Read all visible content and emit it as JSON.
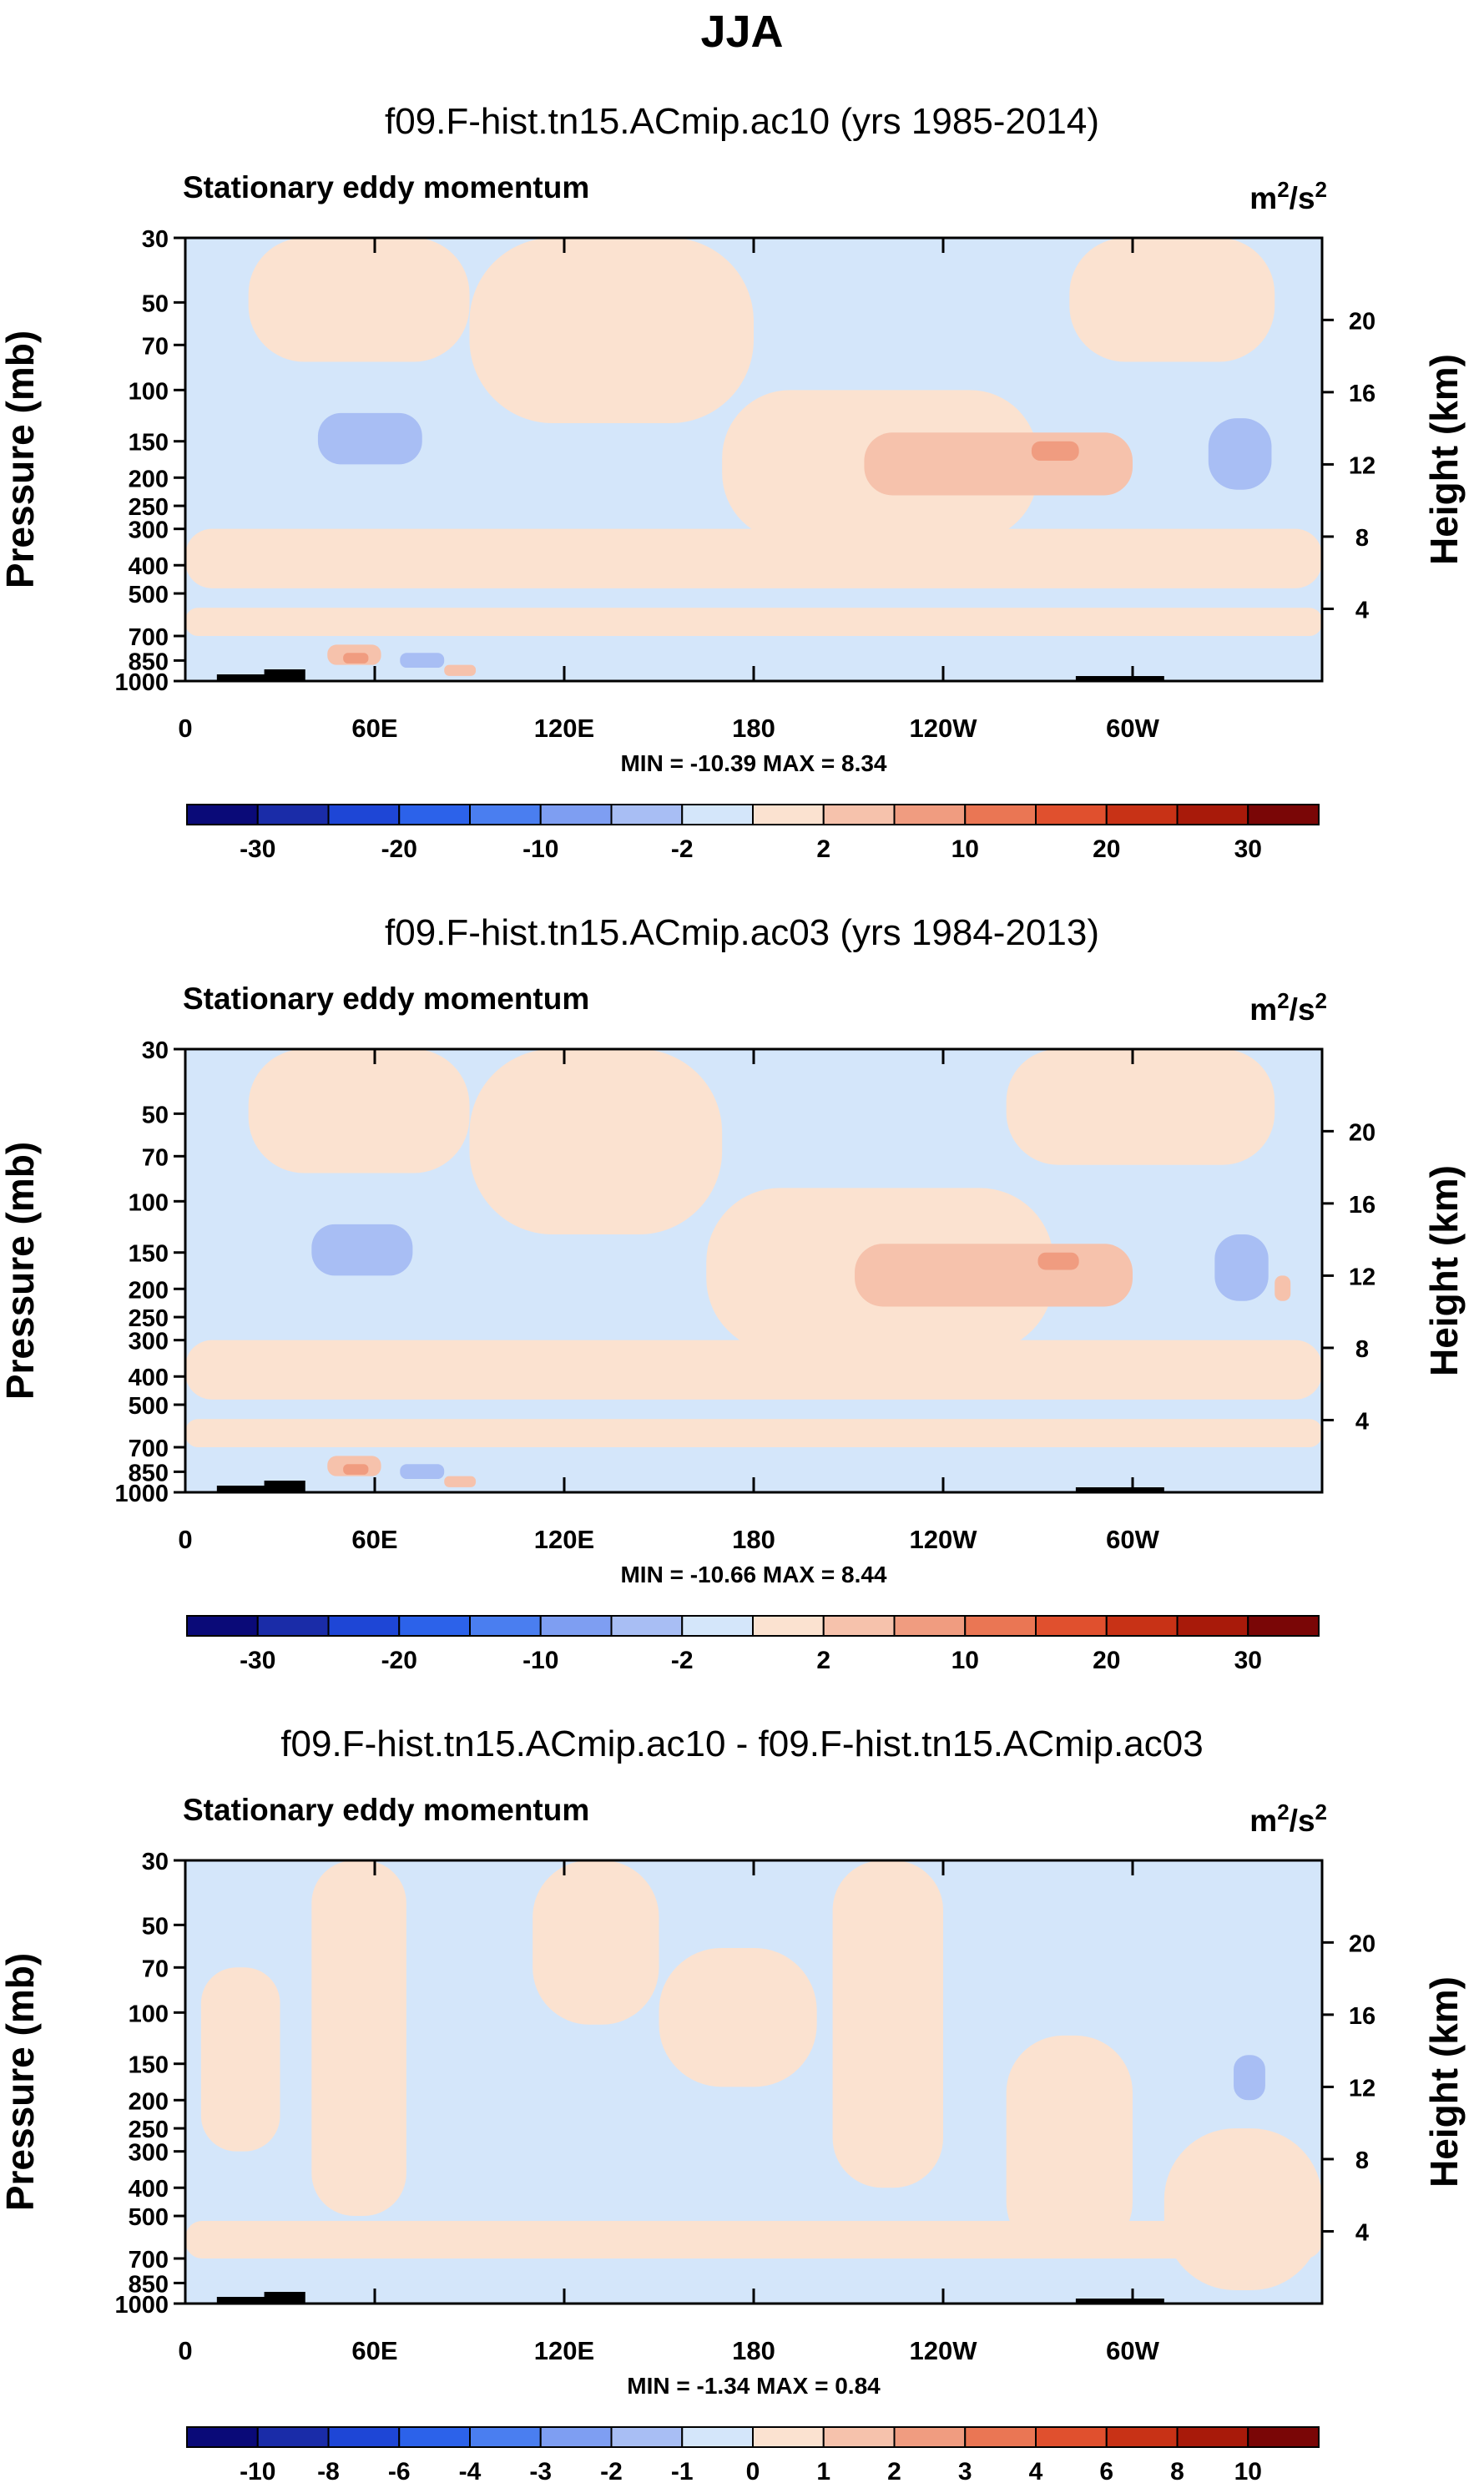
{
  "figure_title": "JJA",
  "chart_data": [
    {
      "type": "heatmap",
      "title": "f09.F-hist.tn15.ACmip.ac10 (yrs 1985-2014)",
      "left_string": "Stationary eddy momentum",
      "units_base": "m",
      "units_exp1": "2",
      "units_mid": "/s",
      "units_exp2": "2",
      "ylabel": "Pressure (mb)",
      "ylabel_right": "Height (km)",
      "y_ticks": [
        "30",
        "50",
        "70",
        "100",
        "150",
        "200",
        "250",
        "300",
        "400",
        "500",
        "700",
        "850",
        "1000"
      ],
      "y_tick_values": [
        30,
        50,
        70,
        100,
        150,
        200,
        250,
        300,
        400,
        500,
        700,
        850,
        1000
      ],
      "height_ticks": [
        "20",
        "16",
        "12",
        "8",
        "4"
      ],
      "height_tick_values": [
        20,
        16,
        12,
        8,
        4
      ],
      "x_ticks": [
        "0",
        "60E",
        "120E",
        "180",
        "120W",
        "60W"
      ],
      "x_tick_values": [
        0,
        60,
        120,
        180,
        240,
        300
      ],
      "xlim": [
        0,
        360
      ],
      "ylim": [
        1000,
        30
      ],
      "stats": "MIN = -10.39  MAX =  8.34",
      "min": -10.39,
      "max": 8.34,
      "colorbar_labels": [
        "-30",
        "-20",
        "-10",
        "-2",
        "2",
        "10",
        "20",
        "30"
      ],
      "colorbar_label_positions": [
        1,
        3,
        5,
        7,
        9,
        11,
        13,
        15
      ],
      "colorbar_colors": [
        "#0a0a78",
        "#1a2ca8",
        "#1e46d6",
        "#2c62ea",
        "#4a7ef0",
        "#7e9ef2",
        "#a8bef4",
        "#d4e6fa",
        "#fbe2d0",
        "#f6c2ac",
        "#f09c80",
        "#ea7654",
        "#e0502e",
        "#c83216",
        "#a81a0a",
        "#7a0606"
      ],
      "regions": [
        {
          "sign": "pos",
          "level": 1,
          "lon": [
            20,
            90
          ],
          "p": [
            30,
            80
          ]
        },
        {
          "sign": "pos",
          "level": 1,
          "lon": [
            90,
            180
          ],
          "p": [
            30,
            130
          ]
        },
        {
          "sign": "pos",
          "level": 1,
          "lon": [
            170,
            270
          ],
          "p": [
            100,
            330
          ]
        },
        {
          "sign": "pos",
          "level": 1,
          "lon": [
            280,
            345
          ],
          "p": [
            30,
            80
          ]
        },
        {
          "sign": "pos",
          "level": 1,
          "lon": [
            0,
            360
          ],
          "p": [
            300,
            480
          ]
        },
        {
          "sign": "pos",
          "level": 1,
          "lon": [
            0,
            360
          ],
          "p": [
            560,
            700
          ]
        },
        {
          "sign": "pos",
          "level": 2,
          "lon": [
            215,
            300
          ],
          "p": [
            140,
            230
          ]
        },
        {
          "sign": "pos",
          "level": 3,
          "lon": [
            268,
            283
          ],
          "p": [
            150,
            175
          ]
        },
        {
          "sign": "neg",
          "level": 2,
          "lon": [
            42,
            75
          ],
          "p": [
            120,
            180
          ]
        },
        {
          "sign": "neg",
          "level": 2,
          "lon": [
            324,
            344
          ],
          "p": [
            125,
            220
          ]
        },
        {
          "sign": "pos",
          "level": 2,
          "lon": [
            45,
            62
          ],
          "p": [
            750,
            880
          ]
        },
        {
          "sign": "pos",
          "level": 3,
          "lon": [
            50,
            58
          ],
          "p": [
            800,
            870
          ]
        },
        {
          "sign": "neg",
          "level": 2,
          "lon": [
            68,
            82
          ],
          "p": [
            800,
            900
          ]
        },
        {
          "sign": "pos",
          "level": 2,
          "lon": [
            82,
            92
          ],
          "p": [
            880,
            960
          ]
        }
      ],
      "topo_label": "topography"
    },
    {
      "type": "heatmap",
      "title": "f09.F-hist.tn15.ACmip.ac03 (yrs 1984-2013)",
      "left_string": "Stationary eddy momentum",
      "units_base": "m",
      "units_exp1": "2",
      "units_mid": "/s",
      "units_exp2": "2",
      "ylabel": "Pressure (mb)",
      "ylabel_right": "Height (km)",
      "y_ticks": [
        "30",
        "50",
        "70",
        "100",
        "150",
        "200",
        "250",
        "300",
        "400",
        "500",
        "700",
        "850",
        "1000"
      ],
      "y_tick_values": [
        30,
        50,
        70,
        100,
        150,
        200,
        250,
        300,
        400,
        500,
        700,
        850,
        1000
      ],
      "height_ticks": [
        "20",
        "16",
        "12",
        "8",
        "4"
      ],
      "height_tick_values": [
        20,
        16,
        12,
        8,
        4
      ],
      "x_ticks": [
        "0",
        "60E",
        "120E",
        "180",
        "120W",
        "60W"
      ],
      "x_tick_values": [
        0,
        60,
        120,
        180,
        240,
        300
      ],
      "xlim": [
        0,
        360
      ],
      "ylim": [
        1000,
        30
      ],
      "stats": "MIN = -10.66  MAX =  8.44",
      "min": -10.66,
      "max": 8.44,
      "colorbar_labels": [
        "-30",
        "-20",
        "-10",
        "-2",
        "2",
        "10",
        "20",
        "30"
      ],
      "colorbar_label_positions": [
        1,
        3,
        5,
        7,
        9,
        11,
        13,
        15
      ],
      "colorbar_colors": [
        "#0a0a78",
        "#1a2ca8",
        "#1e46d6",
        "#2c62ea",
        "#4a7ef0",
        "#7e9ef2",
        "#a8bef4",
        "#d4e6fa",
        "#fbe2d0",
        "#f6c2ac",
        "#f09c80",
        "#ea7654",
        "#e0502e",
        "#c83216",
        "#a81a0a",
        "#7a0606"
      ],
      "regions": [
        {
          "sign": "pos",
          "level": 1,
          "lon": [
            20,
            90
          ],
          "p": [
            30,
            80
          ]
        },
        {
          "sign": "pos",
          "level": 1,
          "lon": [
            90,
            170
          ],
          "p": [
            30,
            130
          ]
        },
        {
          "sign": "pos",
          "level": 1,
          "lon": [
            165,
            275
          ],
          "p": [
            90,
            330
          ]
        },
        {
          "sign": "pos",
          "level": 1,
          "lon": [
            260,
            345
          ],
          "p": [
            30,
            75
          ]
        },
        {
          "sign": "pos",
          "level": 1,
          "lon": [
            0,
            360
          ],
          "p": [
            300,
            480
          ]
        },
        {
          "sign": "pos",
          "level": 1,
          "lon": [
            0,
            360
          ],
          "p": [
            560,
            700
          ]
        },
        {
          "sign": "pos",
          "level": 2,
          "lon": [
            212,
            300
          ],
          "p": [
            140,
            230
          ]
        },
        {
          "sign": "pos",
          "level": 3,
          "lon": [
            270,
            283
          ],
          "p": [
            150,
            172
          ]
        },
        {
          "sign": "neg",
          "level": 2,
          "lon": [
            40,
            72
          ],
          "p": [
            120,
            180
          ]
        },
        {
          "sign": "neg",
          "level": 2,
          "lon": [
            326,
            343
          ],
          "p": [
            130,
            220
          ]
        },
        {
          "sign": "pos",
          "level": 2,
          "lon": [
            345,
            350
          ],
          "p": [
            180,
            220
          ]
        },
        {
          "sign": "pos",
          "level": 2,
          "lon": [
            45,
            62
          ],
          "p": [
            750,
            880
          ]
        },
        {
          "sign": "pos",
          "level": 3,
          "lon": [
            50,
            58
          ],
          "p": [
            800,
            870
          ]
        },
        {
          "sign": "neg",
          "level": 2,
          "lon": [
            68,
            82
          ],
          "p": [
            800,
            900
          ]
        },
        {
          "sign": "pos",
          "level": 2,
          "lon": [
            82,
            92
          ],
          "p": [
            880,
            960
          ]
        }
      ],
      "topo_label": "topography"
    },
    {
      "type": "heatmap",
      "title": "f09.F-hist.tn15.ACmip.ac10 - f09.F-hist.tn15.ACmip.ac03",
      "left_string": "Stationary eddy momentum",
      "units_base": "m",
      "units_exp1": "2",
      "units_mid": "/s",
      "units_exp2": "2",
      "ylabel": "Pressure (mb)",
      "ylabel_right": "Height (km)",
      "y_ticks": [
        "30",
        "50",
        "70",
        "100",
        "150",
        "200",
        "250",
        "300",
        "400",
        "500",
        "700",
        "850",
        "1000"
      ],
      "y_tick_values": [
        30,
        50,
        70,
        100,
        150,
        200,
        250,
        300,
        400,
        500,
        700,
        850,
        1000
      ],
      "height_ticks": [
        "20",
        "16",
        "12",
        "8",
        "4"
      ],
      "height_tick_values": [
        20,
        16,
        12,
        8,
        4
      ],
      "x_ticks": [
        "0",
        "60E",
        "120E",
        "180",
        "120W",
        "60W"
      ],
      "x_tick_values": [
        0,
        60,
        120,
        180,
        240,
        300
      ],
      "xlim": [
        0,
        360
      ],
      "ylim": [
        1000,
        30
      ],
      "stats": "MIN = -1.34  MAX =  0.84",
      "min": -1.34,
      "max": 0.84,
      "colorbar_labels": [
        "-10",
        "-8",
        "-6",
        "-4",
        "-3",
        "-2",
        "-1",
        "0",
        "1",
        "2",
        "3",
        "4",
        "6",
        "8",
        "10"
      ],
      "colorbar_label_positions": [
        1,
        2,
        3,
        4,
        5,
        6,
        7,
        8,
        9,
        10,
        11,
        12,
        13,
        14,
        15
      ],
      "colorbar_colors": [
        "#0a0a78",
        "#1a2ca8",
        "#1e46d6",
        "#2c62ea",
        "#4a7ef0",
        "#7e9ef2",
        "#a8bef4",
        "#d4e6fa",
        "#fbe2d0",
        "#f6c2ac",
        "#f09c80",
        "#ea7654",
        "#e0502e",
        "#c83216",
        "#a81a0a",
        "#7a0606"
      ],
      "regions": [
        {
          "sign": "pos",
          "level": 1,
          "lon": [
            5,
            30
          ],
          "p": [
            70,
            300
          ]
        },
        {
          "sign": "pos",
          "level": 1,
          "lon": [
            40,
            70
          ],
          "p": [
            30,
            500
          ]
        },
        {
          "sign": "pos",
          "level": 1,
          "lon": [
            110,
            150
          ],
          "p": [
            30,
            110
          ]
        },
        {
          "sign": "pos",
          "level": 1,
          "lon": [
            150,
            200
          ],
          "p": [
            60,
            180
          ]
        },
        {
          "sign": "pos",
          "level": 1,
          "lon": [
            205,
            240
          ],
          "p": [
            30,
            400
          ]
        },
        {
          "sign": "pos",
          "level": 1,
          "lon": [
            260,
            300
          ],
          "p": [
            120,
            700
          ]
        },
        {
          "sign": "pos",
          "level": 1,
          "lon": [
            0,
            360
          ],
          "p": [
            520,
            700
          ]
        },
        {
          "sign": "pos",
          "level": 1,
          "lon": [
            310,
            360
          ],
          "p": [
            250,
            900
          ]
        },
        {
          "sign": "neg",
          "level": 2,
          "lon": [
            332,
            342
          ],
          "p": [
            140,
            200
          ]
        }
      ],
      "topo_label": "topography"
    }
  ]
}
